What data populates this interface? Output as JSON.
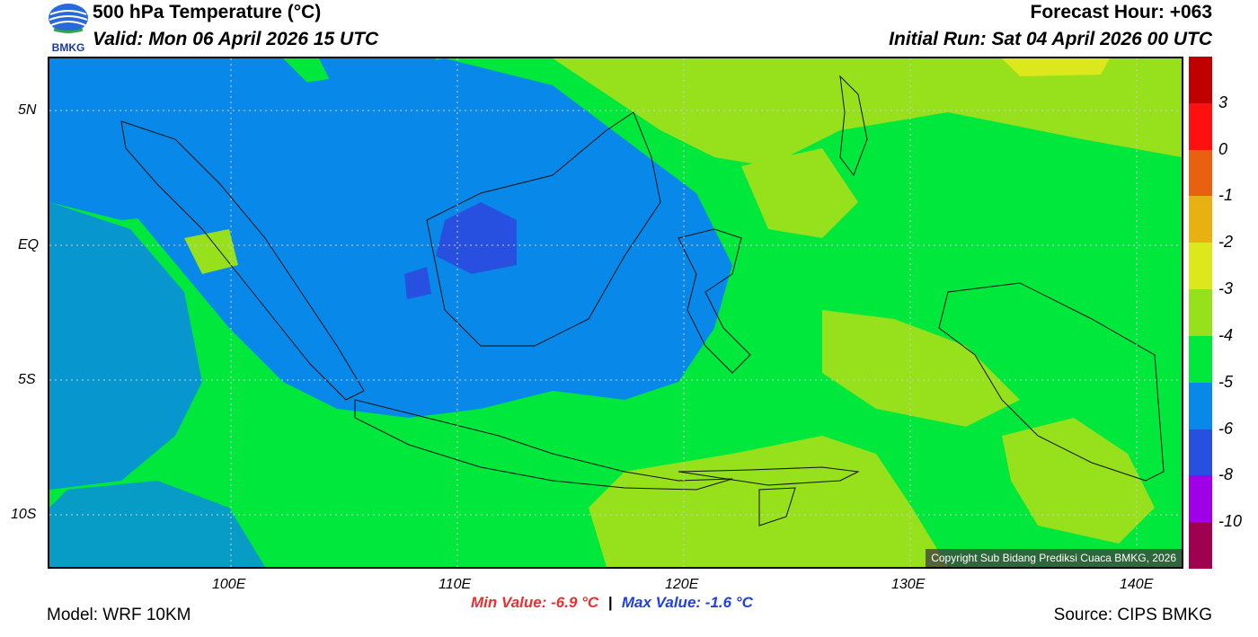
{
  "header": {
    "title": "500 hPa Temperature (°C)",
    "valid": "Valid: Mon 06 April 2026 15 UTC",
    "forecast_hour": "Forecast Hour: +063",
    "initial_run": "Initial Run: Sat 04 April 2026 00 UTC",
    "logo_text": "BMKG"
  },
  "map": {
    "lat_labels": [
      "5N",
      "EQ",
      "5S",
      "10S"
    ],
    "lon_labels": [
      "100E",
      "110E",
      "120E",
      "130E",
      "140E"
    ],
    "copyright": "Copyright Sub Bidang Prediksi Cuaca BMKG, 2026"
  },
  "colorbar": {
    "labels": [
      "3",
      "0",
      "-1",
      "-2",
      "-3",
      "-4",
      "-5",
      "-6",
      "-8",
      "-10"
    ],
    "colors": [
      "#c00000",
      "#ff1010",
      "#e86010",
      "#e8b010",
      "#dce81c",
      "#96e01c",
      "#00e83c",
      "#0888e8",
      "#2850e0",
      "#a000e8",
      "#a00050"
    ]
  },
  "stats": {
    "min": "Min Value: -6.9 °C",
    "separator": "|",
    "max": "Max Value: -1.6 °C"
  },
  "footer": {
    "model": "Model: WRF 10KM",
    "source": "Source: CIPS BMKG"
  }
}
